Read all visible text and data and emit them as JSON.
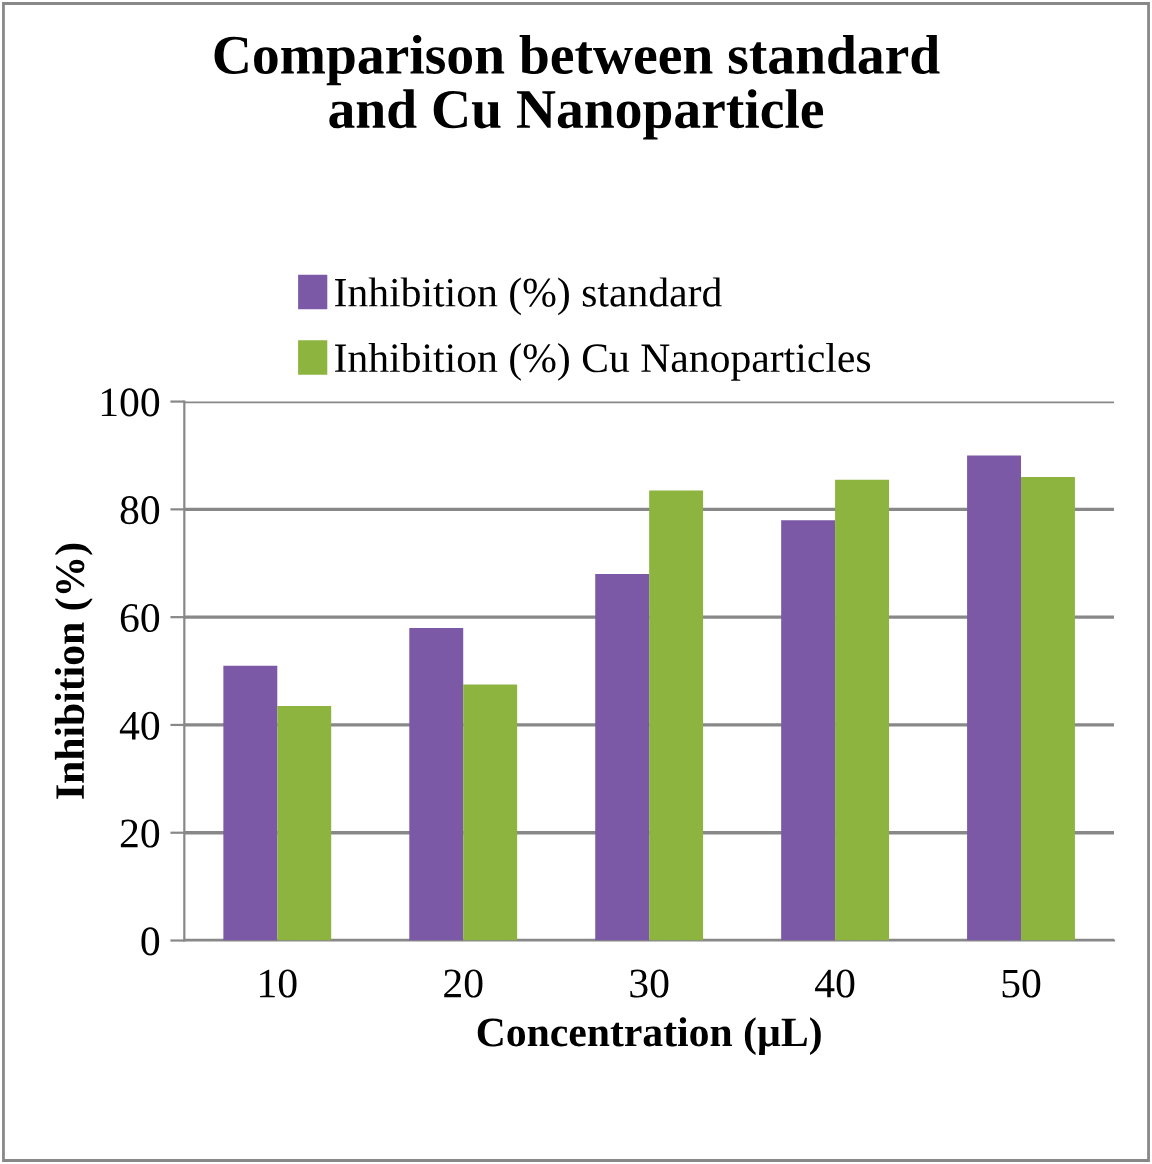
{
  "chart_data": {
    "type": "bar",
    "title": "Comparison between standard\nand Cu Nanoparticle",
    "xlabel": "Concentration (µL)",
    "ylabel": "Inhibition (%)",
    "categories": [
      "10",
      "20",
      "30",
      "40",
      "50"
    ],
    "series": [
      {
        "name": "Inhibition (%) standard",
        "color": "#7b59a6",
        "values": [
          51,
          58,
          68,
          78,
          90
        ]
      },
      {
        "name": "Inhibition (%) Cu Nanoparticles",
        "color": "#8db43f",
        "values": [
          43.5,
          47.5,
          83.5,
          85.5,
          86
        ]
      }
    ],
    "ylim": [
      0,
      100
    ],
    "yticks": [
      0,
      20,
      40,
      60,
      80,
      100
    ],
    "grid": "y",
    "legend": "top"
  }
}
